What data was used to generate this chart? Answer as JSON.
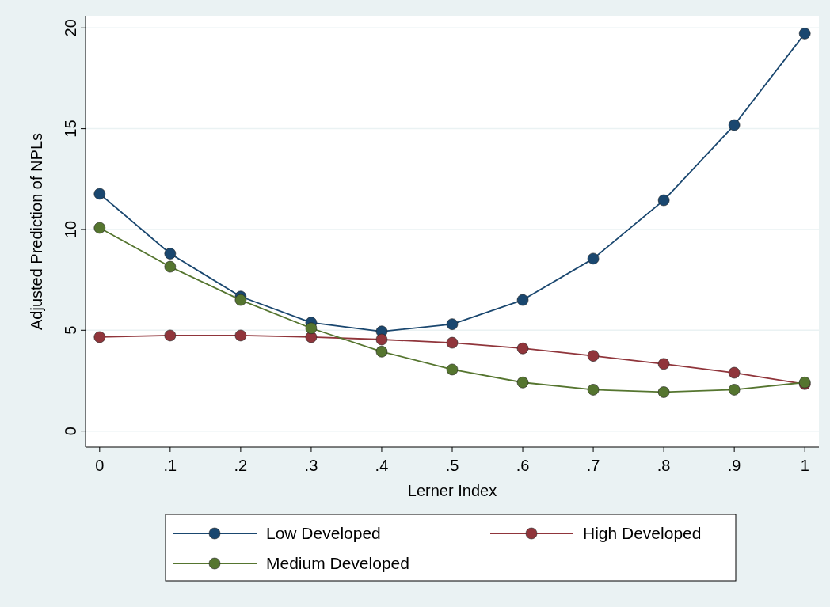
{
  "chart_data": {
    "type": "line",
    "xlabel": "Lerner Index",
    "ylabel": "Adjusted Prediction of NPLs",
    "x": [
      0,
      0.1,
      0.2,
      0.3,
      0.4,
      0.5,
      0.6,
      0.7,
      0.8,
      0.9,
      1
    ],
    "series": [
      {
        "name": "Low Developed",
        "color": "#1a476f",
        "values": [
          11.77,
          8.8,
          6.67,
          5.38,
          4.94,
          5.3,
          6.5,
          8.55,
          11.45,
          15.18,
          19.72
        ]
      },
      {
        "name": "High Developed",
        "color": "#90353b",
        "values": [
          4.66,
          4.74,
          4.74,
          4.66,
          4.54,
          4.38,
          4.1,
          3.73,
          3.33,
          2.89,
          2.33
        ]
      },
      {
        "name": "Medium Developed",
        "color": "#55752f",
        "values": [
          10.08,
          8.15,
          6.5,
          5.1,
          3.94,
          3.05,
          2.41,
          2.05,
          1.93,
          2.05,
          2.41
        ]
      }
    ],
    "xlim": [
      -0.02,
      1.02
    ],
    "ylim": [
      -0.8,
      20.6
    ],
    "xticks": [
      0,
      {
        "value": 0.1,
        "label": ".1"
      },
      {
        "value": 0.2,
        "label": ".2"
      },
      {
        "value": 0.3,
        "label": ".3"
      },
      {
        "value": 0.4,
        "label": ".4"
      },
      {
        "value": 0.5,
        "label": ".5"
      },
      {
        "value": 0.6,
        "label": ".6"
      },
      {
        "value": 0.7,
        "label": ".7"
      },
      {
        "value": 0.8,
        "label": ".8"
      },
      {
        "value": 0.9,
        "label": ".9"
      },
      1
    ],
    "yticks": [
      0,
      5,
      10,
      15,
      20
    ],
    "grid": "y",
    "legend": "bottom",
    "marker": "circle",
    "line_style": "solid"
  }
}
